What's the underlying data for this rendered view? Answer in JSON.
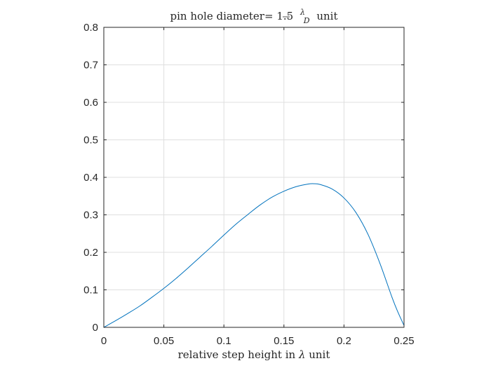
{
  "chart_data": {
    "type": "line",
    "title": {
      "prefix": "pin hole diameter= 1.5",
      "fraction_numerator": "λ",
      "fraction_denominator": "D",
      "suffix": "unit"
    },
    "xlabel": {
      "prefix": "relative step height in",
      "symbol": "λ",
      "suffix": "unit"
    },
    "ylabel": "",
    "xlim": [
      0,
      0.25
    ],
    "ylim": [
      0,
      0.8
    ],
    "xticks": [
      0,
      0.05,
      0.1,
      0.15,
      0.2,
      0.25
    ],
    "xtick_labels": [
      "0",
      "0.05",
      "0.1",
      "0.15",
      "0.2",
      "0.25"
    ],
    "yticks": [
      0,
      0.1,
      0.2,
      0.3,
      0.4,
      0.5,
      0.6,
      0.7,
      0.8
    ],
    "ytick_labels": [
      "0",
      "0.1",
      "0.2",
      "0.3",
      "0.4",
      "0.5",
      "0.6",
      "0.7",
      "0.8"
    ],
    "grid": true,
    "series": [
      {
        "color": "#0072BD",
        "x": [
          0,
          0.01,
          0.02,
          0.03,
          0.04,
          0.05,
          0.06,
          0.07,
          0.08,
          0.09,
          0.1,
          0.11,
          0.12,
          0.13,
          0.14,
          0.15,
          0.16,
          0.17,
          0.175,
          0.18,
          0.19,
          0.2,
          0.21,
          0.22,
          0.23,
          0.24,
          0.245,
          0.25
        ],
        "y": [
          0,
          0.018,
          0.037,
          0.057,
          0.08,
          0.104,
          0.13,
          0.158,
          0.187,
          0.216,
          0.246,
          0.275,
          0.301,
          0.326,
          0.347,
          0.363,
          0.375,
          0.382,
          0.383,
          0.381,
          0.369,
          0.345,
          0.306,
          0.248,
          0.17,
          0.08,
          0.04,
          0.005
        ]
      }
    ]
  }
}
